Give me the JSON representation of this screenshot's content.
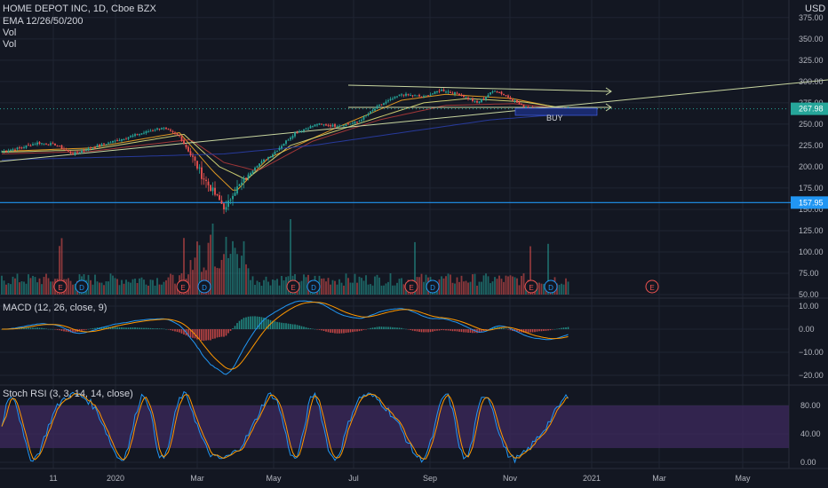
{
  "header": {
    "title": "HOME DEPOT INC, 1D, Cboe BZX",
    "indicator_1": "EMA 12/26/50/200",
    "indicator_2": "Vol",
    "indicator_3": "Vol",
    "currency": "USD"
  },
  "colors": {
    "background": "#131722",
    "grid": "#1f2433",
    "up": "#26a69a",
    "down": "#ef5350",
    "ema12": "#f5a623",
    "ema26": "#e0e07a",
    "ema50": "#b03a3a",
    "ema200": "#2a3ea8",
    "trendline": "#c8d6a0",
    "horizontal_level": "#2196f3",
    "macd": "#2196f3",
    "signal": "#ff9800",
    "rsi_k": "#2196f3",
    "rsi_d": "#ff9800",
    "rsi_band": "#3d2a5e",
    "buy_box": "#1a2a6e"
  },
  "chart_data": {
    "type": "candlestick",
    "price_axis": {
      "ticks": [
        "375.00",
        "350.00",
        "325.00",
        "300.00",
        "275.00",
        "250.00",
        "225.00",
        "200.00",
        "175.00",
        "150.00",
        "125.00",
        "100.00",
        "75.00",
        "50.00"
      ],
      "tick_values": [
        375,
        350,
        325,
        300,
        275,
        250,
        225,
        200,
        175,
        150,
        125,
        100,
        75,
        50
      ],
      "current_price": "267.98",
      "level_price": "157.95"
    },
    "macd_axis": {
      "ticks": [
        "10.00",
        "0.00",
        "−10.00",
        "−20.00"
      ],
      "tick_values": [
        10,
        0,
        -10,
        -20
      ]
    },
    "rsi_axis": {
      "ticks": [
        "80.00",
        "40.00",
        "0.00"
      ],
      "tick_values": [
        80,
        40,
        0
      ]
    },
    "x_ticks": [
      "11",
      "2020",
      "Mar",
      "May",
      "Jul",
      "Sep",
      "Nov",
      "2021",
      "Mar",
      "May"
    ],
    "price_anchors": [
      [
        0,
        218
      ],
      [
        8,
        222
      ],
      [
        16,
        228
      ],
      [
        24,
        226
      ],
      [
        32,
        215
      ],
      [
        40,
        222
      ],
      [
        48,
        228
      ],
      [
        56,
        234
      ],
      [
        64,
        240
      ],
      [
        72,
        246
      ],
      [
        80,
        236
      ],
      [
        86,
        210
      ],
      [
        90,
        190
      ],
      [
        94,
        175
      ],
      [
        98,
        160
      ],
      [
        101,
        150
      ],
      [
        104,
        170
      ],
      [
        108,
        180
      ],
      [
        114,
        200
      ],
      [
        122,
        215
      ],
      [
        132,
        240
      ],
      [
        142,
        250
      ],
      [
        150,
        248
      ],
      [
        160,
        252
      ],
      [
        170,
        272
      ],
      [
        180,
        285
      ],
      [
        190,
        282
      ],
      [
        198,
        290
      ],
      [
        206,
        285
      ],
      [
        214,
        275
      ],
      [
        222,
        290
      ],
      [
        228,
        282
      ],
      [
        234,
        272
      ],
      [
        240,
        268
      ],
      [
        245,
        264
      ],
      [
        252,
        266
      ],
      [
        255,
        268
      ]
    ],
    "ema_curves": {
      "ema12": [
        [
          0,
          218
        ],
        [
          40,
          222
        ],
        [
          80,
          240
        ],
        [
          95,
          195
        ],
        [
          105,
          170
        ],
        [
          120,
          210
        ],
        [
          150,
          245
        ],
        [
          180,
          278
        ],
        [
          200,
          285
        ],
        [
          230,
          280
        ],
        [
          255,
          267
        ]
      ],
      "ema26": [
        [
          0,
          217
        ],
        [
          40,
          220
        ],
        [
          82,
          238
        ],
        [
          98,
          200
        ],
        [
          110,
          185
        ],
        [
          130,
          225
        ],
        [
          160,
          250
        ],
        [
          190,
          275
        ],
        [
          210,
          280
        ],
        [
          235,
          276
        ],
        [
          255,
          268
        ]
      ],
      "ema50": [
        [
          0,
          215
        ],
        [
          40,
          218
        ],
        [
          85,
          232
        ],
        [
          100,
          205
        ],
        [
          115,
          195
        ],
        [
          140,
          230
        ],
        [
          170,
          255
        ],
        [
          200,
          272
        ],
        [
          230,
          274
        ],
        [
          255,
          268
        ]
      ],
      "ema200": [
        [
          0,
          208
        ],
        [
          60,
          212
        ],
        [
          100,
          215
        ],
        [
          140,
          225
        ],
        [
          180,
          240
        ],
        [
          220,
          255
        ],
        [
          255,
          262
        ]
      ]
    },
    "levels": {
      "horizontal": 157.95,
      "last": 267.98
    },
    "annotations": {
      "buy_label": "BUY",
      "earnings_markers": [
        "E",
        "D",
        "E",
        "D",
        "E",
        "D",
        "E",
        "D",
        "E",
        "D",
        "E"
      ]
    },
    "indicators": {
      "macd_label": "MACD (12, 26, close, 9)",
      "rsi_label": "Stoch RSI (3, 3, 14, 14, close)",
      "rsi_band": [
        20,
        80
      ]
    }
  }
}
